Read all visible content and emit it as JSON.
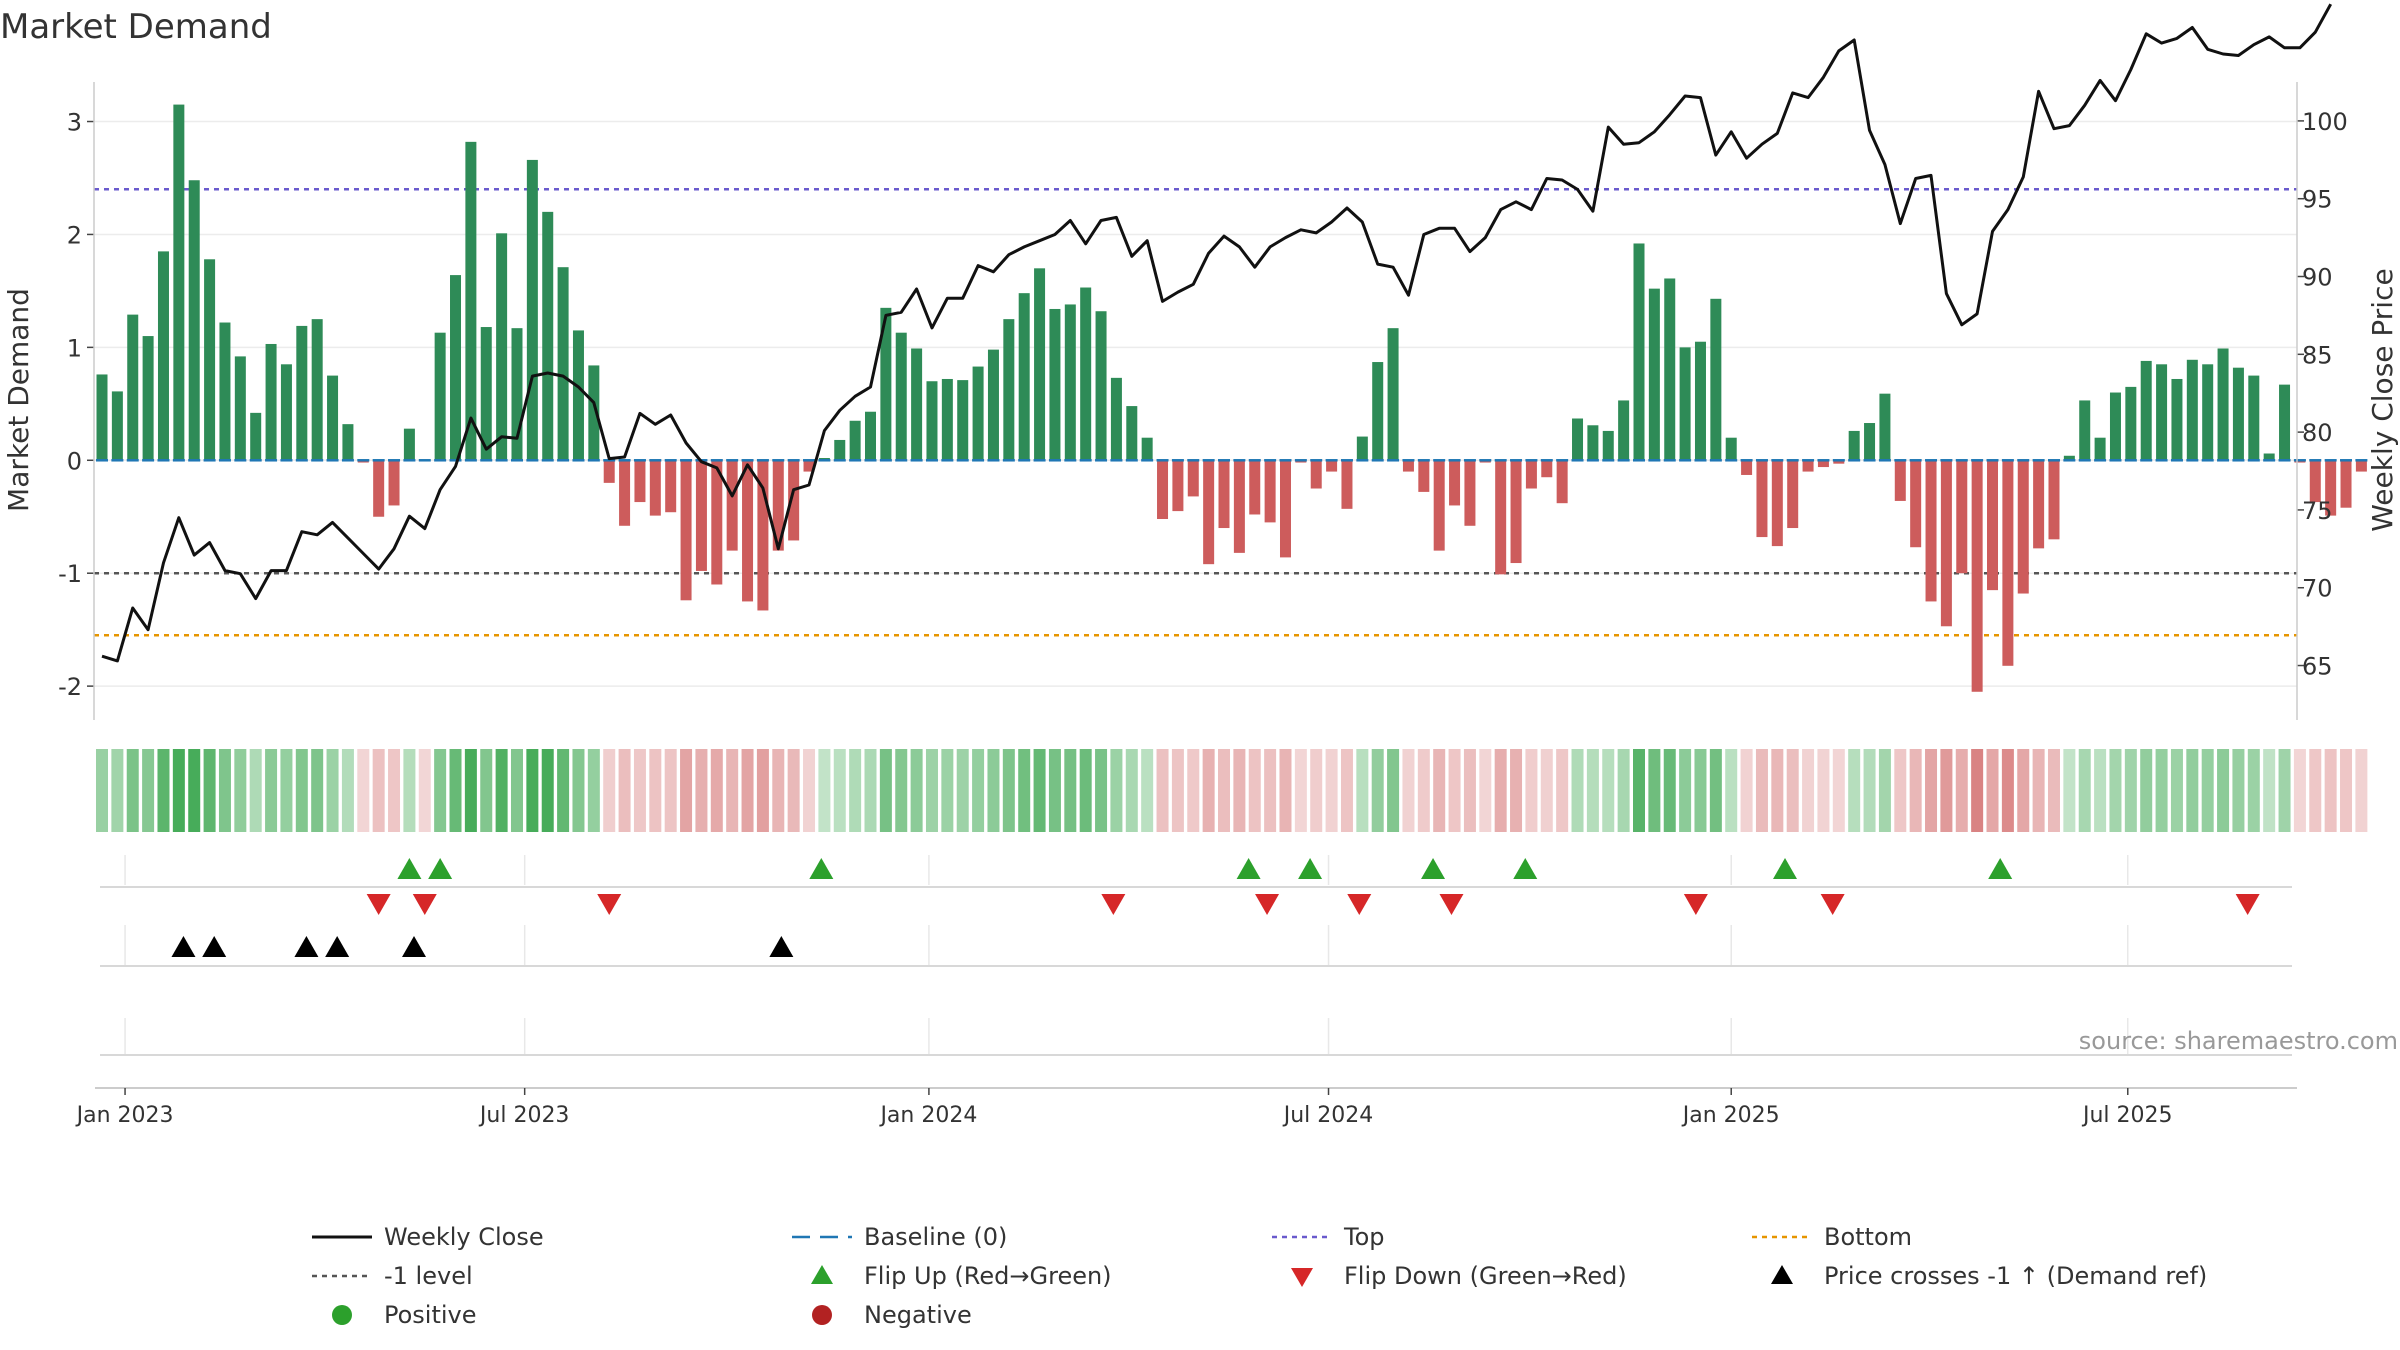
{
  "chart_data": {
    "type": "bar",
    "title": "Market Demand",
    "ylabel_left": "Market Demand",
    "ylabel_right": "Weekly Close Price",
    "source": "source: sharemaestro.com",
    "ylim_left": [
      -2.3,
      3.35
    ],
    "ylim_right": [
      61.5,
      102.5
    ],
    "yticks_left": [
      -2,
      -1,
      0,
      1,
      2,
      3
    ],
    "yticks_right": [
      65,
      70,
      75,
      80,
      85,
      90,
      95,
      100
    ],
    "x_start": "2023-01-02",
    "x_period": "weekly",
    "x_ticks": [
      {
        "label": "Jan 2023",
        "week": 1.5
      },
      {
        "label": "Jul 2023",
        "week": 27.5
      },
      {
        "label": "Jan 2024",
        "week": 53.8
      },
      {
        "label": "Jul 2024",
        "week": 79.8
      },
      {
        "label": "Jan 2025",
        "week": 106.0
      },
      {
        "label": "Jul 2025",
        "week": 131.8
      }
    ],
    "ref_lines": {
      "top": 2.4,
      "minus_one": -1,
      "bottom": -1.55,
      "baseline": 0
    },
    "demand": [
      0.76,
      0.61,
      1.29,
      1.1,
      1.85,
      3.15,
      2.48,
      1.78,
      1.22,
      0.92,
      0.42,
      1.03,
      0.85,
      1.19,
      1.25,
      0.75,
      0.32,
      -0.02,
      -0.5,
      -0.4,
      0.28,
      -0.01,
      1.13,
      1.64,
      2.82,
      1.18,
      2.01,
      1.17,
      2.66,
      2.2,
      1.71,
      1.15,
      0.84,
      -0.2,
      -0.58,
      -0.37,
      -0.49,
      -0.46,
      -1.24,
      -0.98,
      -1.1,
      -0.8,
      -1.25,
      -1.33,
      -0.8,
      -0.71,
      -0.1,
      0.02,
      0.18,
      0.35,
      0.43,
      1.35,
      1.13,
      0.99,
      0.7,
      0.72,
      0.71,
      0.83,
      0.98,
      1.25,
      1.48,
      1.7,
      1.34,
      1.38,
      1.53,
      1.32,
      0.73,
      0.48,
      0.2,
      -0.52,
      -0.45,
      -0.32,
      -0.92,
      -0.6,
      -0.82,
      -0.48,
      -0.55,
      -0.86,
      -0.02,
      -0.25,
      -0.1,
      -0.43,
      0.21,
      0.87,
      1.17,
      -0.1,
      -0.28,
      -0.8,
      -0.4,
      -0.58,
      -0.02,
      -1.01,
      -0.91,
      -0.25,
      -0.15,
      -0.38,
      0.37,
      0.31,
      0.26,
      0.53,
      1.92,
      1.52,
      1.61,
      1.0,
      1.05,
      1.43,
      0.2,
      -0.13,
      -0.68,
      -0.76,
      -0.6,
      -0.1,
      -0.06,
      -0.03,
      0.26,
      0.33,
      0.59,
      -0.36,
      -0.77,
      -1.25,
      -1.47,
      -1.0,
      -2.05,
      -1.15,
      -1.82,
      -1.18,
      -0.78,
      -0.7,
      0.04,
      0.53,
      0.2,
      0.6,
      0.65,
      0.88,
      0.85,
      0.72,
      0.89,
      0.85,
      0.99,
      0.82,
      0.75,
      0.06,
      0.67,
      -0.02,
      -0.37,
      -0.49,
      -0.42,
      -0.1
    ],
    "price": [
      65.6,
      65.3,
      68.7,
      67.3,
      71.6,
      74.5,
      72.1,
      72.9,
      71.1,
      70.9,
      69.3,
      71.1,
      71.1,
      73.6,
      73.4,
      74.2,
      73.2,
      72.2,
      71.2,
      72.5,
      74.6,
      73.8,
      76.3,
      77.8,
      80.9,
      78.9,
      79.7,
      79.6,
      83.6,
      83.8,
      83.6,
      82.9,
      81.9,
      78.3,
      78.4,
      81.2,
      80.5,
      81.1,
      79.3,
      78.1,
      77.7,
      75.9,
      77.9,
      76.4,
      72.5,
      76.3,
      76.6,
      80.1,
      81.4,
      82.3,
      82.9,
      87.5,
      87.7,
      89.2,
      86.7,
      88.6,
      88.6,
      90.7,
      90.3,
      91.4,
      91.9,
      92.3,
      92.7,
      93.6,
      92.1,
      93.6,
      93.8,
      91.3,
      92.3,
      88.4,
      89.0,
      89.5,
      91.5,
      92.6,
      91.9,
      90.6,
      91.9,
      92.5,
      93.0,
      92.8,
      93.5,
      94.4,
      93.5,
      90.8,
      90.6,
      88.8,
      92.7,
      93.1,
      93.1,
      91.6,
      92.5,
      94.3,
      94.8,
      94.3,
      96.3,
      96.2,
      95.6,
      94.2,
      99.6,
      98.5,
      98.6,
      99.3,
      100.4,
      101.6,
      101.5,
      97.8,
      99.3,
      97.6,
      98.5,
      99.2,
      101.8,
      101.5,
      102.8,
      104.5,
      105.2,
      99.4,
      97.2,
      93.4,
      96.3,
      96.5,
      88.9,
      86.9,
      87.6,
      92.9,
      94.3,
      96.4,
      101.9,
      99.5,
      99.7,
      101.0,
      102.6,
      101.3,
      103.3,
      105.6,
      105.0,
      105.3,
      106.0,
      104.6,
      104.3,
      104.2,
      104.9,
      105.4,
      104.7,
      104.7,
      105.7,
      107.5
    ],
    "flip_up_weeks": [
      20.0,
      22.0,
      46.8,
      74.6,
      78.6,
      86.6,
      92.6,
      109.5,
      123.5
    ],
    "flip_down_weeks": [
      18.0,
      21.0,
      33.0,
      65.8,
      75.8,
      81.8,
      87.8,
      103.7,
      112.6,
      139.6
    ],
    "price_cross_weeks": [
      5.3,
      7.3,
      13.3,
      15.3,
      20.3,
      44.2
    ],
    "legend": [
      "Weekly Close",
      "Baseline (0)",
      "Top",
      "Bottom",
      "-1 level",
      "Flip Up (Red→Green)",
      "Flip Down (Green→Red)",
      "Price crosses -1 ↑ (Demand ref)",
      "Positive",
      "Negative"
    ],
    "colors": {
      "positive_bar": "#2e8b57",
      "negative_bar": "#cd5c5c",
      "price_line": "#111111",
      "baseline": "#1f77b4",
      "top_line": "#6a5acd",
      "minus_one_line": "#555555",
      "bottom_line": "#e69500",
      "flip_up": "#2ca02c",
      "flip_down": "#d62728",
      "price_cross": "#000000",
      "positive_dot": "#2ca02c",
      "negative_dot": "#b22222"
    }
  }
}
